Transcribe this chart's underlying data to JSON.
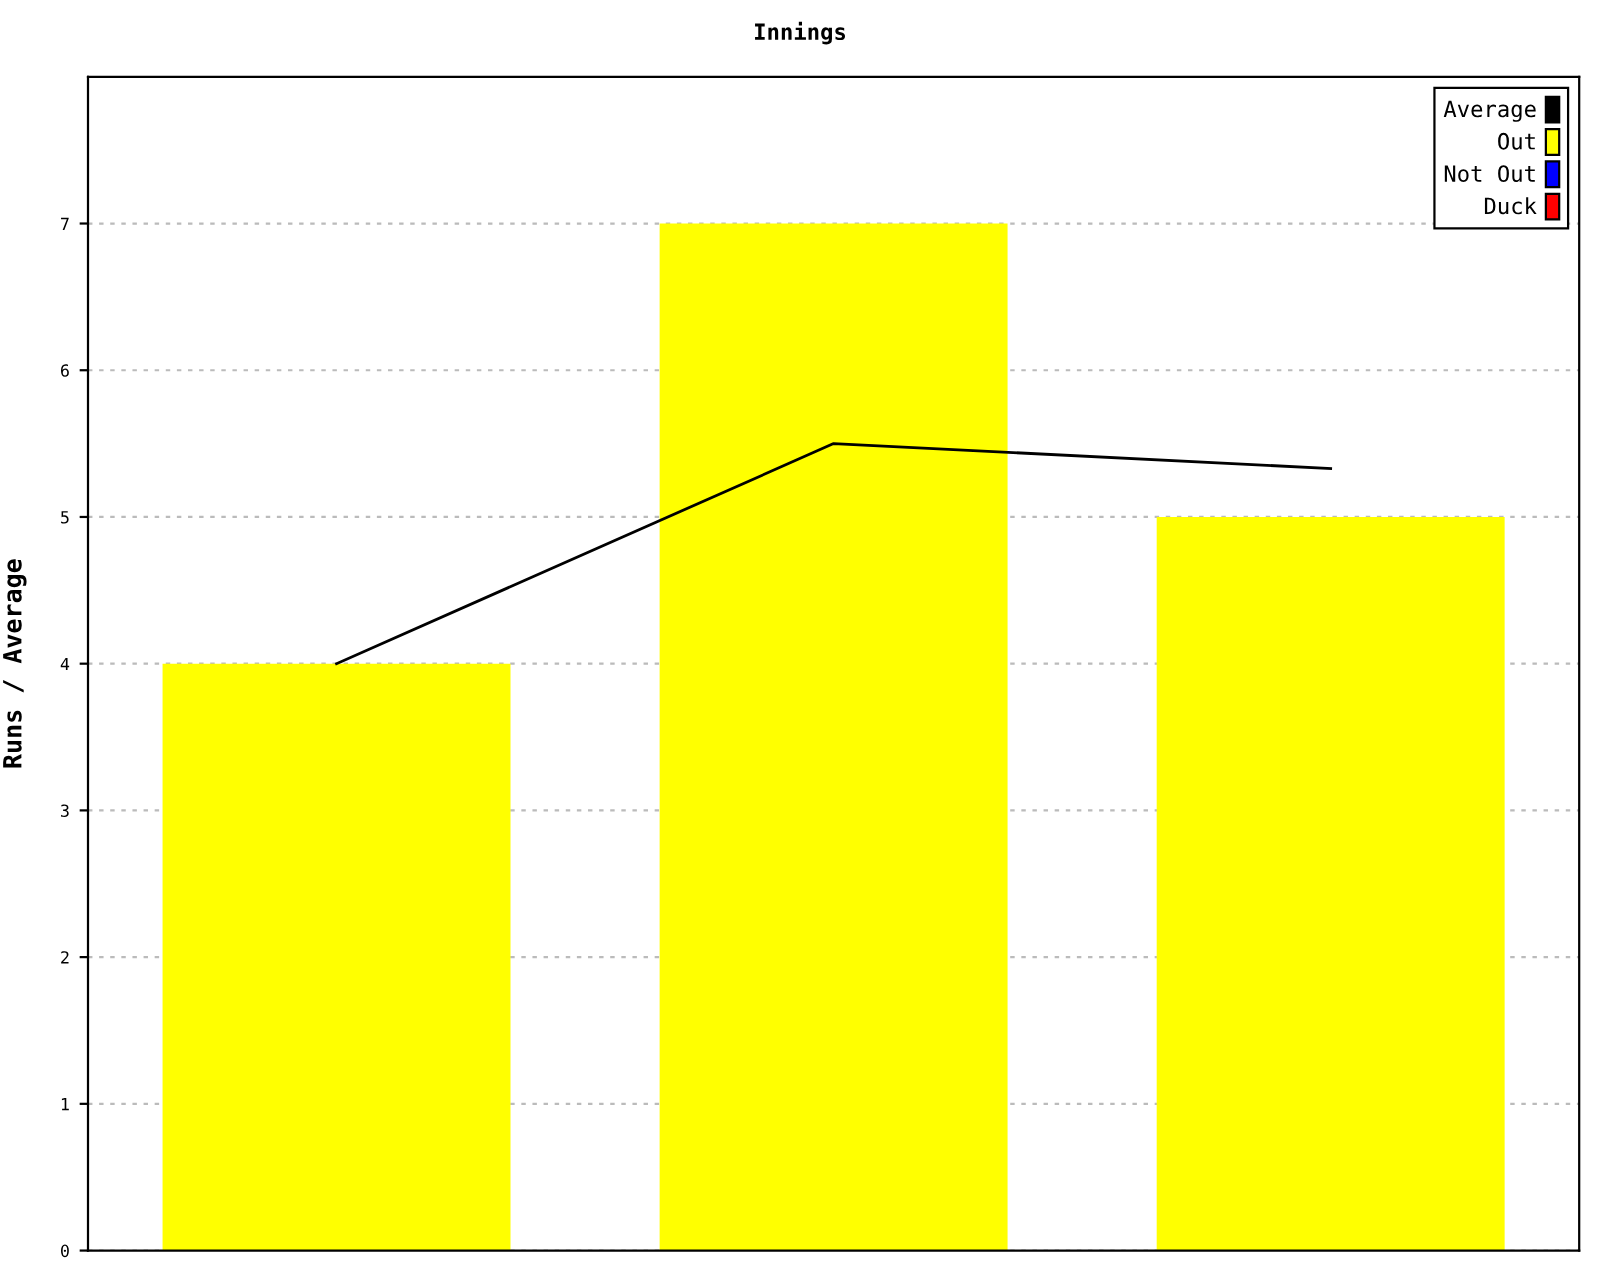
{
  "chart_data": {
    "type": "bar",
    "title": "Innings",
    "ylabel": "Runs / Average",
    "categories": [
      null,
      null,
      null
    ],
    "series": [
      {
        "name": "Average",
        "type": "line",
        "color": "#000000",
        "values": [
          4,
          5.5,
          5.33
        ]
      },
      {
        "name": "Out",
        "color": "#ffff00",
        "values": [
          4,
          7,
          5
        ]
      },
      {
        "name": "Not Out",
        "color": "#0000ff",
        "values": [
          null,
          null,
          null
        ]
      },
      {
        "name": "Duck",
        "color": "#ff0000",
        "values": [
          null,
          null,
          null
        ]
      }
    ],
    "ylim": [
      0,
      8
    ],
    "yticks": [
      0,
      1,
      2,
      3,
      4,
      5,
      6,
      7
    ],
    "grid": "y",
    "legend": "top right",
    "marker": "none"
  }
}
